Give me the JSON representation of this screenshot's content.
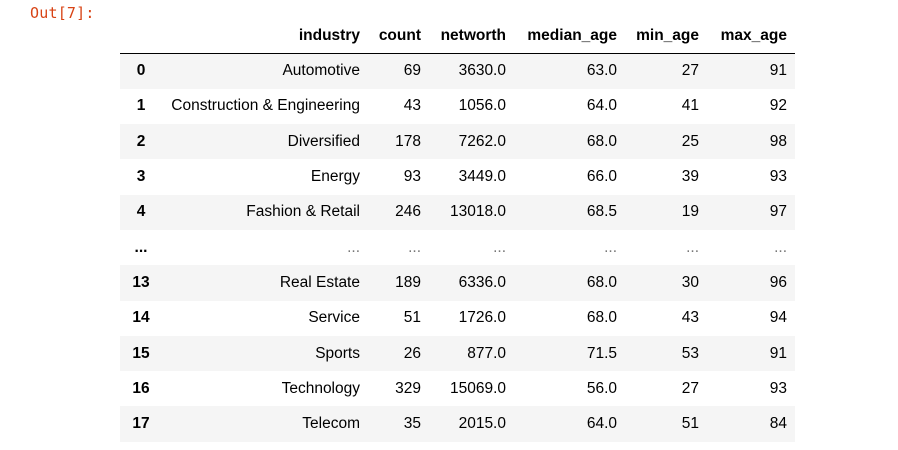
{
  "cell": {
    "prompt": "Out[7]:"
  },
  "table": {
    "columns": [
      "industry",
      "count",
      "networth",
      "median_age",
      "min_age",
      "max_age"
    ],
    "rows": [
      {
        "index": "0",
        "cells": [
          "Automotive",
          "69",
          "3630.0",
          "63.0",
          "27",
          "91"
        ]
      },
      {
        "index": "1",
        "cells": [
          "Construction & Engineering",
          "43",
          "1056.0",
          "64.0",
          "41",
          "92"
        ]
      },
      {
        "index": "2",
        "cells": [
          "Diversified",
          "178",
          "7262.0",
          "68.0",
          "25",
          "98"
        ]
      },
      {
        "index": "3",
        "cells": [
          "Energy",
          "93",
          "3449.0",
          "66.0",
          "39",
          "93"
        ]
      },
      {
        "index": "4",
        "cells": [
          "Fashion & Retail",
          "246",
          "13018.0",
          "68.5",
          "19",
          "97"
        ]
      },
      {
        "index": "...",
        "cells": [
          "...",
          "...",
          "...",
          "...",
          "...",
          "..."
        ]
      },
      {
        "index": "13",
        "cells": [
          "Real Estate",
          "189",
          "6336.0",
          "68.0",
          "30",
          "96"
        ]
      },
      {
        "index": "14",
        "cells": [
          "Service",
          "51",
          "1726.0",
          "68.0",
          "43",
          "94"
        ]
      },
      {
        "index": "15",
        "cells": [
          "Sports",
          "26",
          "877.0",
          "71.5",
          "53",
          "91"
        ]
      },
      {
        "index": "16",
        "cells": [
          "Technology",
          "329",
          "15069.0",
          "56.0",
          "27",
          "93"
        ]
      },
      {
        "index": "17",
        "cells": [
          "Telecom",
          "35",
          "2015.0",
          "64.0",
          "51",
          "84"
        ]
      }
    ]
  },
  "colors": {
    "prompt": "#d84315",
    "stripe": "#f5f5f5",
    "header_rule": "#000000"
  }
}
